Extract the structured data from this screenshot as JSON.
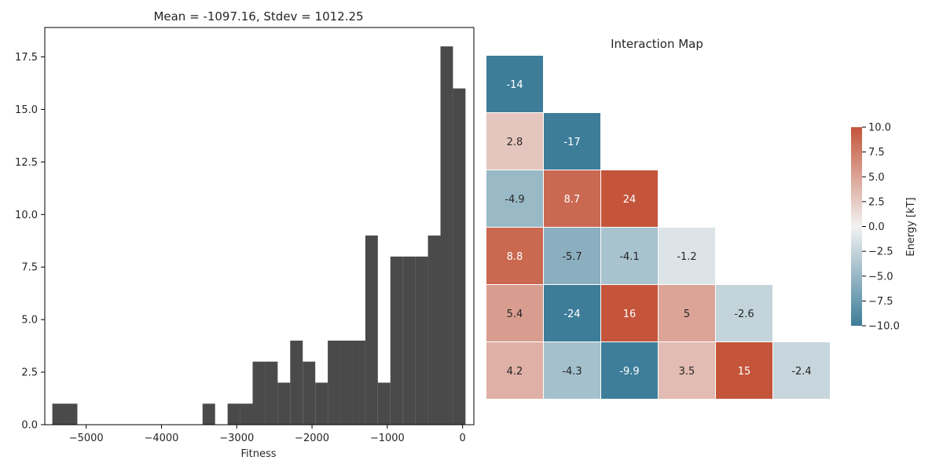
{
  "chart_data": [
    {
      "type": "bar",
      "title": "Mean = -1097.16, Stdev = 1012.25",
      "xlabel": "Fitness",
      "ylabel": "",
      "xlim": [
        -5550,
        150
      ],
      "ylim": [
        0,
        18.9
      ],
      "bin_width": 166.33,
      "bins": [
        {
          "x0": -5450,
          "count": 1
        },
        {
          "x0": -5283.7,
          "count": 1
        },
        {
          "x0": -3454,
          "count": 1
        },
        {
          "x0": -3121.3,
          "count": 1
        },
        {
          "x0": -2955,
          "count": 1
        },
        {
          "x0": -2788.7,
          "count": 3
        },
        {
          "x0": -2622.3,
          "count": 3
        },
        {
          "x0": -2456,
          "count": 2
        },
        {
          "x0": -2289.7,
          "count": 4
        },
        {
          "x0": -2123.3,
          "count": 3
        },
        {
          "x0": -1957,
          "count": 2
        },
        {
          "x0": -1790.7,
          "count": 4
        },
        {
          "x0": -1624.3,
          "count": 4
        },
        {
          "x0": -1458,
          "count": 4
        },
        {
          "x0": -1291.7,
          "count": 9
        },
        {
          "x0": -1125.3,
          "count": 2
        },
        {
          "x0": -959,
          "count": 8
        },
        {
          "x0": -792.7,
          "count": 8
        },
        {
          "x0": -626.3,
          "count": 8
        },
        {
          "x0": -460,
          "count": 9
        },
        {
          "x0": -293.7,
          "count": 18
        },
        {
          "x0": -127.3,
          "count": 16
        }
      ],
      "xticks": [
        -5000,
        -4000,
        -3000,
        -2000,
        -1000,
        0
      ],
      "xtick_labels": [
        "−5000",
        "−4000",
        "−3000",
        "−2000",
        "−1000",
        "0"
      ],
      "yticks": [
        0,
        2.5,
        5,
        7.5,
        10,
        12.5,
        15,
        17.5
      ],
      "ytick_labels": [
        "0.0",
        "2.5",
        "5.0",
        "7.5",
        "10.0",
        "12.5",
        "15.0",
        "17.5"
      ],
      "bar_color": "#4a4a4a"
    },
    {
      "type": "heatmap",
      "title": "Interaction Map",
      "colorbar_label": "Energy [kT]",
      "vmin": -10,
      "vmax": 10,
      "colorbar_ticks": [
        10,
        7.5,
        5,
        2.5,
        0,
        -2.5,
        -5,
        -7.5,
        -10
      ],
      "colorbar_tick_labels": [
        "10.0",
        "7.5",
        "5.0",
        "2.5",
        "0.0",
        "−2.5",
        "−5.0",
        "−7.5",
        "−10.0"
      ],
      "rows": [
        [
          -14
        ],
        [
          2.8,
          -17
        ],
        [
          -4.9,
          8.7,
          24
        ],
        [
          8.8,
          -5.7,
          -4.1,
          -1.2
        ],
        [
          5.4,
          -24,
          16,
          5,
          -2.6
        ],
        [
          4.2,
          -4.3,
          -9.9,
          3.5,
          15,
          -2.4
        ]
      ],
      "labels": [
        [
          "-14"
        ],
        [
          "2.8",
          "-17"
        ],
        [
          "-4.9",
          "8.7",
          "24"
        ],
        [
          "8.8",
          "-5.7",
          "-4.1",
          "-1.2"
        ],
        [
          "5.4",
          "-24",
          "16",
          "5",
          "-2.6"
        ],
        [
          "4.2",
          "-4.3",
          "-9.9",
          "3.5",
          "15",
          "-2.4"
        ]
      ],
      "colors": {
        "negative": "#3d7d99",
        "center": "#f2f2f2",
        "positive": "#c4553a"
      }
    }
  ]
}
